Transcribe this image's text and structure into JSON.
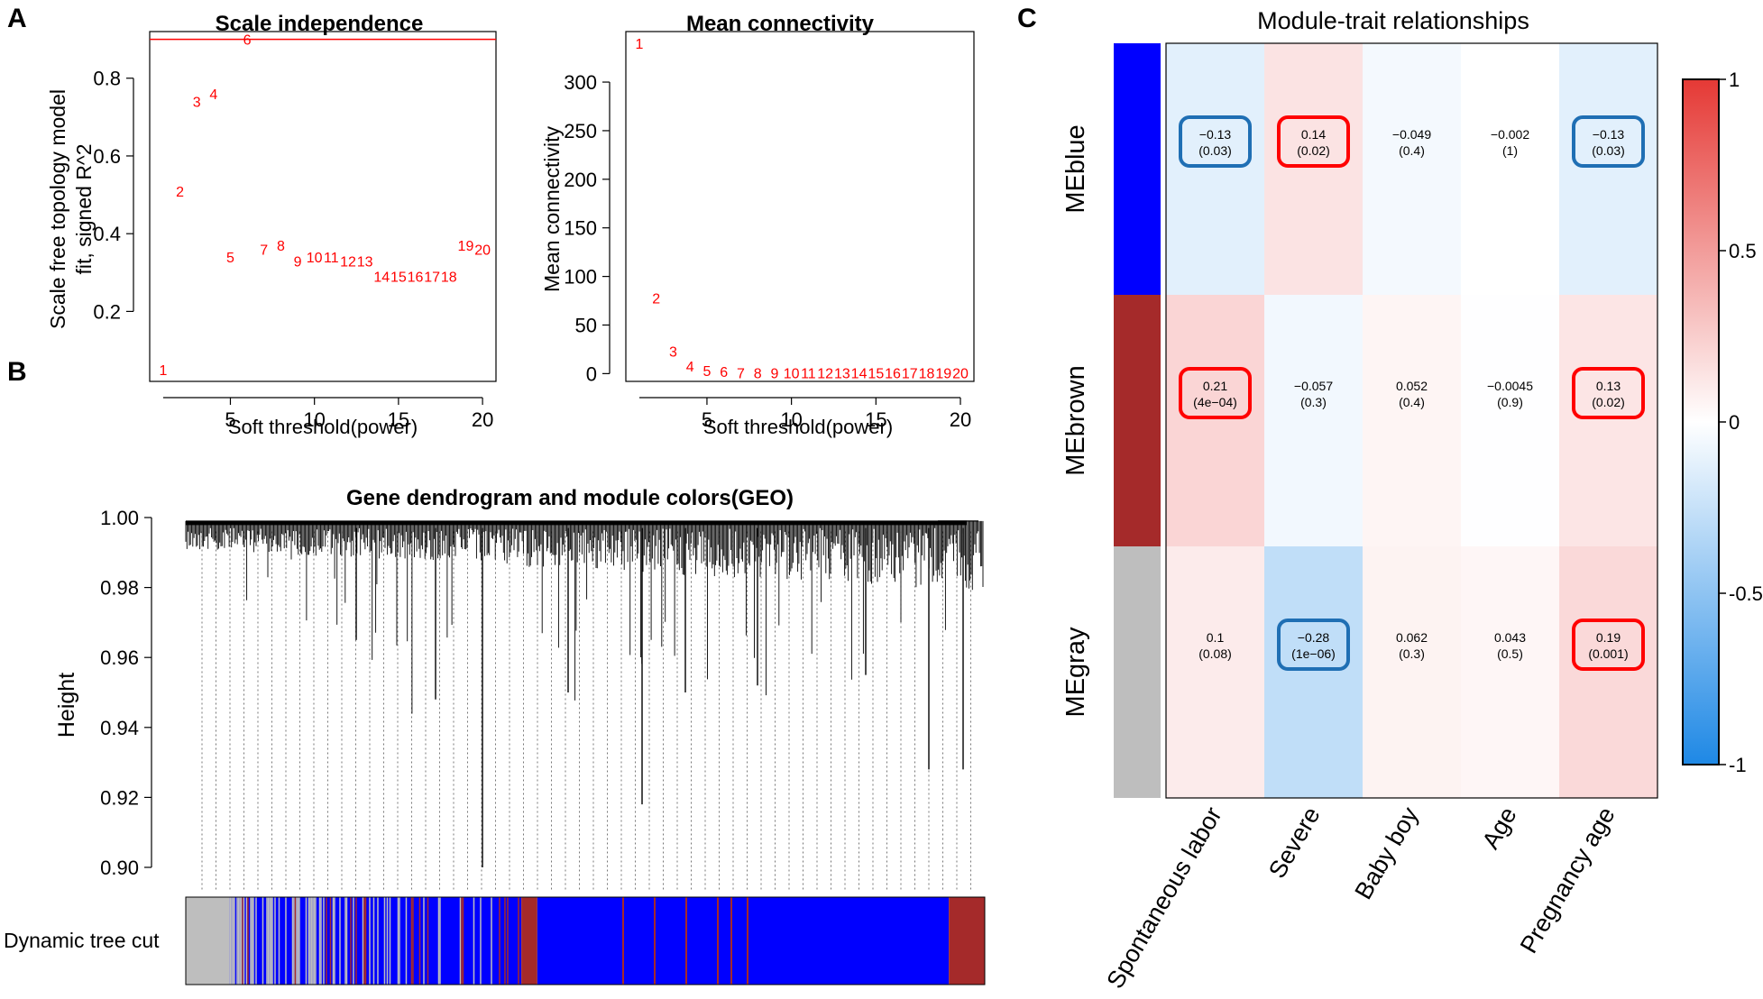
{
  "panel_labels": {
    "a": "A",
    "b": "B",
    "c": "C"
  },
  "colors": {
    "red": "#ff0000",
    "highlight_red": "#ff0000",
    "highlight_blue": "#1f6fb4",
    "me_blue": "#0000ff",
    "me_brown": "#a52a2a",
    "me_gray": "#bebebe",
    "cmap_neg": "#1e88e5",
    "cmap_mid": "#ffffff",
    "cmap_pos": "#e53935"
  },
  "chart_data": [
    {
      "id": "scale_independence",
      "type": "scatter",
      "title": "Scale independence",
      "xlabel": "Soft threshold(power)",
      "ylabel_line1": "Scale free topology model",
      "ylabel_line2": "fit,   signed R^2",
      "xlim": [
        0.2,
        20.8
      ],
      "ylim": [
        0.02,
        0.92
      ],
      "xticks": [
        5,
        10,
        15,
        20
      ],
      "yticks": [
        0.2,
        0.4,
        0.6,
        0.8
      ],
      "ytick_labels": [
        "0.2",
        "0.4",
        "0.6",
        "0.8"
      ],
      "hline": 0.9,
      "x": [
        1,
        2,
        3,
        4,
        5,
        6,
        7,
        8,
        9,
        10,
        11,
        12,
        13,
        14,
        15,
        16,
        17,
        18,
        19,
        20
      ],
      "y": [
        0.05,
        0.51,
        0.74,
        0.76,
        0.34,
        0.9,
        0.36,
        0.37,
        0.33,
        0.34,
        0.34,
        0.33,
        0.33,
        0.29,
        0.29,
        0.29,
        0.29,
        0.29,
        0.37,
        0.36
      ]
    },
    {
      "id": "mean_connectivity",
      "type": "scatter",
      "title": "Mean connectivity",
      "xlabel": "Soft threshold(power)",
      "ylabel": "Mean connectivity",
      "xlim": [
        0.2,
        20.8
      ],
      "ylim": [
        -8,
        352
      ],
      "xticks": [
        5,
        10,
        15,
        20
      ],
      "yticks": [
        0,
        50,
        100,
        150,
        200,
        250,
        300
      ],
      "x": [
        1,
        2,
        3,
        4,
        5,
        6,
        7,
        8,
        9,
        10,
        11,
        12,
        13,
        14,
        15,
        16,
        17,
        18,
        19,
        20
      ],
      "y": [
        340,
        78,
        23,
        8,
        3,
        2,
        1,
        1,
        1,
        1,
        1,
        1,
        1,
        1,
        1,
        1,
        1,
        1,
        1,
        1
      ]
    },
    {
      "id": "dendrogram",
      "type": "dendrogram",
      "title": "Gene dendrogram and module colors(GEO)",
      "ylabel": "Height",
      "ylim": [
        0.9,
        1.0
      ],
      "yticks": [
        1.0,
        0.98,
        0.96,
        0.94,
        0.92,
        0.9
      ],
      "ytick_labels": [
        "1.00",
        "0.98",
        "0.96",
        "0.94",
        "0.92",
        "0.90"
      ],
      "color_bar_label": "Dynamic tree cut",
      "module_segments": [
        {
          "module": "gray",
          "from": 0.0,
          "to": 0.055
        },
        {
          "module": "mixed",
          "from": 0.055,
          "to": 0.42
        },
        {
          "module": "brown",
          "from": 0.42,
          "to": 0.44
        },
        {
          "module": "blue",
          "from": 0.44,
          "to": 0.955
        },
        {
          "module": "brown",
          "from": 0.955,
          "to": 1.0
        }
      ]
    },
    {
      "id": "module_trait",
      "type": "heatmap",
      "title": "Module-trait relationships",
      "rows": [
        "MEblue",
        "MEbrown",
        "MEgray"
      ],
      "columns": [
        "Spontaneous labor",
        "Severe",
        "Baby boy",
        "Age",
        "Pregnancy age"
      ],
      "values": [
        [
          -0.13,
          0.14,
          -0.049,
          -0.002,
          -0.13
        ],
        [
          0.21,
          -0.057,
          0.052,
          -0.0045,
          0.13
        ],
        [
          0.1,
          -0.28,
          0.062,
          0.043,
          0.19
        ]
      ],
      "value_labels": [
        [
          "-0.13",
          "0.14",
          "-0.049",
          "-0.002",
          "-0.13"
        ],
        [
          "0.21",
          "-0.057",
          "0.052",
          "-0.0045",
          "0.13"
        ],
        [
          "0.1",
          "-0.28",
          "0.062",
          "0.043",
          "0.19"
        ]
      ],
      "pvalue_labels": [
        [
          "(0.03)",
          "(0.02)",
          "(0.4)",
          "(1)",
          "(0.03)"
        ],
        [
          "(4e-04)",
          "(0.3)",
          "(0.4)",
          "(0.9)",
          "(0.02)"
        ],
        [
          "(0.08)",
          "(1e-06)",
          "(0.3)",
          "(0.5)",
          "(0.001)"
        ]
      ],
      "highlighted": [
        [
          true,
          true,
          false,
          false,
          true
        ],
        [
          true,
          false,
          false,
          false,
          true
        ],
        [
          false,
          true,
          false,
          false,
          true
        ]
      ],
      "legend_range": [
        -1,
        1
      ],
      "legend_ticks": [
        1,
        0.5,
        0,
        -0.5,
        -1
      ],
      "legend_tick_labels": [
        "1",
        "0.5",
        "0",
        "-0.5",
        "-1"
      ]
    }
  ]
}
